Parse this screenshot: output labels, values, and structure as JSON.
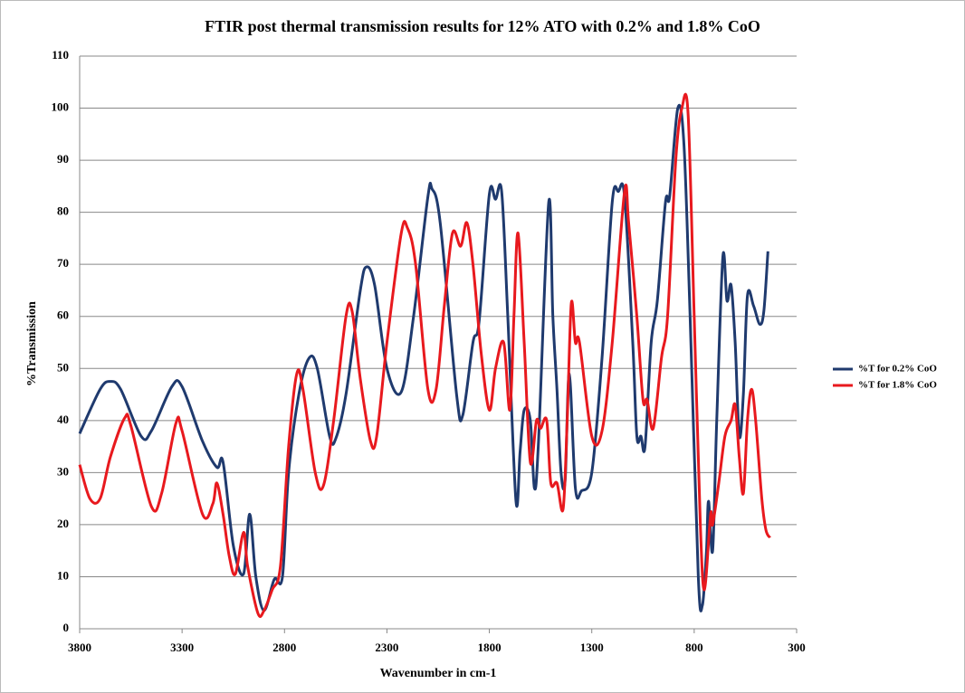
{
  "chart_data": {
    "type": "line",
    "title": "FTIR post thermal transmission results for 12% ATO with 0.2% and 1.8% CoO",
    "x_label": "Wavenumber in cm-1",
    "y_label": "%Transmission",
    "xlim": [
      3800,
      300
    ],
    "xticks": [
      3800,
      3300,
      2800,
      2300,
      1800,
      1300,
      800,
      300
    ],
    "ylim": [
      0,
      110
    ],
    "yticks": [
      0,
      10,
      20,
      30,
      40,
      50,
      60,
      70,
      80,
      90,
      100,
      110
    ],
    "grid": true,
    "legend": "right",
    "series": [
      {
        "name": "%T for 0.2% CoO",
        "color": "#1f3a6e",
        "x": [
          3800,
          3700,
          3650,
          3600,
          3500,
          3450,
          3350,
          3300,
          3200,
          3130,
          3100,
          3050,
          3000,
          2970,
          2940,
          2900,
          2850,
          2810,
          2780,
          2730,
          2680,
          2640,
          2580,
          2550,
          2500,
          2430,
          2400,
          2360,
          2300,
          2230,
          2170,
          2100,
          2080,
          2040,
          1960,
          1930,
          1880,
          1850,
          1800,
          1770,
          1740,
          1710,
          1670,
          1650,
          1630,
          1600,
          1580,
          1560,
          1510,
          1490,
          1470,
          1450,
          1430,
          1410,
          1380,
          1350,
          1300,
          1250,
          1200,
          1170,
          1140,
          1100,
          1080,
          1060,
          1040,
          1010,
          980,
          940,
          920,
          880,
          850,
          820,
          780,
          760,
          740,
          730,
          710,
          690,
          660,
          640,
          620,
          600,
          580,
          560,
          540,
          510,
          480,
          460,
          440
        ],
        "values": [
          37.5,
          46,
          47.5,
          46,
          37,
          38,
          46.5,
          46.5,
          36,
          31,
          32,
          16,
          10.5,
          22,
          10,
          3.5,
          9.5,
          10,
          30,
          45,
          52,
          50,
          37,
          36.5,
          45,
          65,
          69.5,
          66,
          50,
          45.5,
          60,
          83,
          84.5,
          78,
          45,
          41,
          55,
          59,
          83.5,
          82.5,
          84,
          60,
          24.5,
          34,
          42,
          40,
          27,
          36,
          82,
          60,
          46,
          30,
          28.5,
          49,
          27,
          26.5,
          30,
          52,
          82,
          84,
          83,
          55,
          37,
          37,
          35,
          55,
          63,
          82,
          83,
          100,
          93,
          60,
          10,
          4.5,
          15,
          24.5,
          15,
          40,
          71.5,
          63,
          66,
          55,
          37,
          45,
          64,
          62,
          58.5,
          61,
          72.5
        ]
      },
      {
        "name": "%T for 1.8% CoO",
        "color": "#e8191e",
        "x": [
          3800,
          3750,
          3700,
          3650,
          3580,
          3550,
          3450,
          3400,
          3330,
          3300,
          3200,
          3150,
          3130,
          3100,
          3070,
          3040,
          3000,
          2980,
          2930,
          2900,
          2860,
          2820,
          2780,
          2740,
          2710,
          2650,
          2610,
          2560,
          2500,
          2470,
          2430,
          2380,
          2350,
          2300,
          2230,
          2200,
          2160,
          2100,
          2060,
          2020,
          1980,
          1940,
          1910,
          1880,
          1840,
          1800,
          1770,
          1730,
          1700,
          1680,
          1660,
          1630,
          1600,
          1570,
          1550,
          1520,
          1500,
          1470,
          1440,
          1420,
          1400,
          1380,
          1360,
          1300,
          1250,
          1200,
          1140,
          1120,
          1080,
          1050,
          1030,
          1000,
          960,
          930,
          890,
          860,
          830,
          800,
          770,
          750,
          720,
          710,
          680,
          650,
          620,
          600,
          580,
          560,
          540,
          520,
          500,
          470,
          450,
          430
        ],
        "values": [
          31.5,
          25,
          25,
          33,
          40.5,
          39,
          23.5,
          26,
          39.5,
          38,
          22,
          24,
          28,
          22,
          14,
          10.5,
          18.5,
          12,
          3,
          3.5,
          7.5,
          12,
          35,
          49,
          46,
          30,
          27.5,
          40,
          60,
          61,
          48,
          36,
          37,
          55,
          76,
          77,
          70,
          46,
          46,
          62,
          76,
          73.5,
          78,
          70,
          53,
          42,
          50,
          55,
          42,
          60,
          76,
          55,
          32,
          40,
          38.5,
          40,
          28,
          28,
          23,
          40,
          62.5,
          55,
          55,
          37,
          38,
          55,
          84,
          78,
          60,
          44,
          44,
          38.5,
          52,
          60,
          90,
          100,
          99,
          60,
          20,
          7.5,
          22,
          20,
          28,
          37,
          40,
          43,
          33,
          26,
          40,
          46,
          40,
          25,
          19,
          17.5
        ]
      }
    ]
  }
}
